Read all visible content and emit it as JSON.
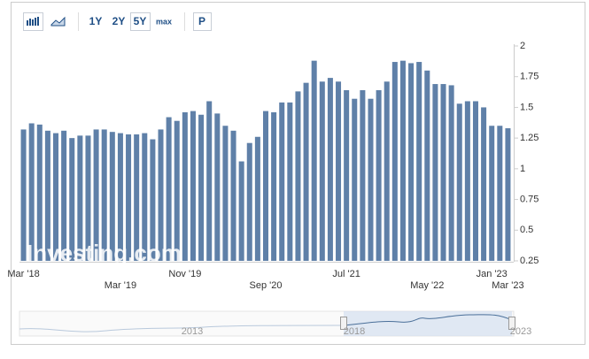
{
  "chart_data": {
    "type": "bar",
    "range_buttons": [
      "1Y",
      "2Y",
      "5Y",
      "max",
      "P"
    ],
    "watermark": "Investing.com",
    "navigator_labels": [
      "2013",
      "2018",
      "2023"
    ],
    "categories": [
      "Mar '18",
      null,
      null,
      null,
      null,
      null,
      null,
      null,
      null,
      null,
      null,
      null,
      "Mar '19",
      null,
      null,
      null,
      null,
      null,
      null,
      null,
      "Nov '19",
      null,
      null,
      null,
      null,
      null,
      null,
      null,
      null,
      null,
      "Sep '20",
      null,
      null,
      null,
      null,
      null,
      null,
      null,
      null,
      null,
      "Jul '21",
      null,
      null,
      null,
      null,
      null,
      null,
      null,
      null,
      null,
      "May '22",
      null,
      null,
      null,
      null,
      null,
      null,
      null,
      "Jan '23",
      null,
      "Mar '23"
    ],
    "values": [
      1.32,
      1.37,
      1.36,
      1.31,
      1.29,
      1.31,
      1.25,
      1.27,
      1.27,
      1.32,
      1.32,
      1.3,
      1.29,
      1.28,
      1.28,
      1.29,
      1.24,
      1.32,
      1.42,
      1.39,
      1.46,
      1.47,
      1.44,
      1.55,
      1.45,
      1.35,
      1.31,
      1.06,
      1.21,
      1.26,
      1.47,
      1.46,
      1.54,
      1.54,
      1.63,
      1.7,
      1.88,
      1.71,
      1.74,
      1.71,
      1.64,
      1.57,
      1.64,
      1.57,
      1.64,
      1.71,
      1.87,
      1.88,
      1.86,
      1.87,
      1.8,
      1.69,
      1.69,
      1.68,
      1.53,
      1.55,
      1.55,
      1.5,
      1.35,
      1.35,
      1.33
    ],
    "color": "#5f80a8",
    "ylim": [
      0.25,
      2
    ],
    "yticks": [
      0.25,
      0.5,
      0.75,
      1,
      1.25,
      1.5,
      1.75,
      2
    ],
    "grid": false
  }
}
